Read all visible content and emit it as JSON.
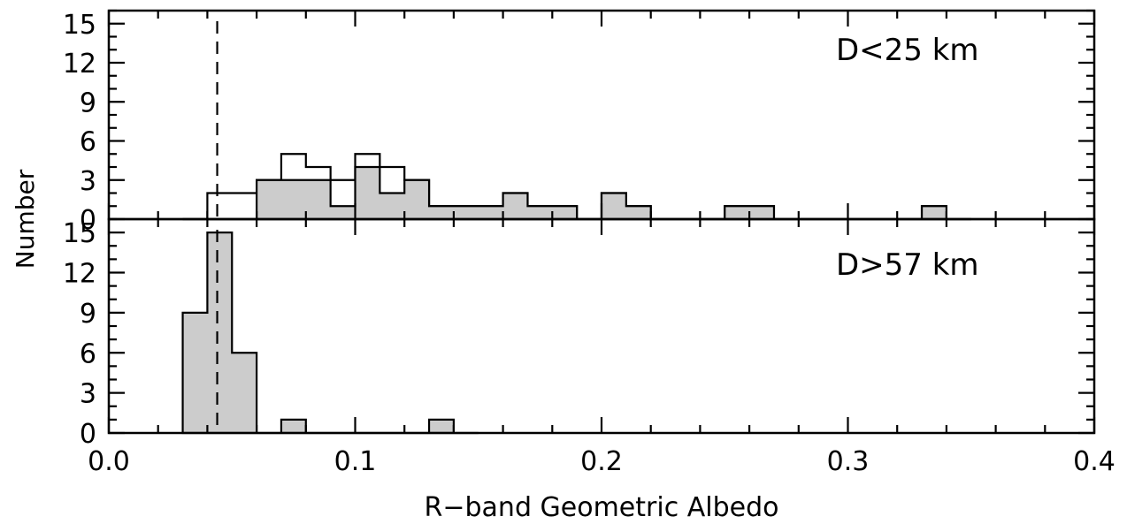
{
  "chart_data": [
    {
      "type": "bar",
      "panel": "top",
      "annotation": "D<25 km",
      "ylabel": "Number",
      "xlim": [
        0.0,
        0.4
      ],
      "ylim": [
        0,
        16
      ],
      "yticks": [
        0,
        3,
        6,
        9,
        12,
        15
      ],
      "bin_width": 0.01,
      "bin_starts": [
        0.03,
        0.04,
        0.05,
        0.06,
        0.07,
        0.08,
        0.09,
        0.1,
        0.11,
        0.12,
        0.13,
        0.14,
        0.15,
        0.16,
        0.17,
        0.18,
        0.19,
        0.2,
        0.21,
        0.22,
        0.23,
        0.24,
        0.25,
        0.26,
        0.27,
        0.28,
        0.29,
        0.3,
        0.31,
        0.32,
        0.33,
        0.34
      ],
      "series": [
        {
          "style": "open",
          "values": [
            0,
            2,
            2,
            3,
            5,
            4,
            3,
            5,
            4,
            3,
            1,
            1,
            1,
            2,
            1,
            1,
            0,
            2,
            1,
            0,
            0,
            0,
            1,
            1,
            0,
            0,
            0,
            0,
            0,
            0,
            1,
            0
          ]
        },
        {
          "style": "filled",
          "values": [
            0,
            0,
            0,
            3,
            3,
            3,
            1,
            4,
            2,
            3,
            1,
            1,
            1,
            2,
            1,
            1,
            0,
            2,
            1,
            0,
            0,
            0,
            1,
            1,
            0,
            0,
            0,
            0,
            0,
            0,
            1,
            0
          ]
        }
      ],
      "reference_line_x": 0.044
    },
    {
      "type": "bar",
      "panel": "bottom",
      "annotation": "D>57 km",
      "xlabel": "R−band Geometric Albedo",
      "xlim": [
        0.0,
        0.4
      ],
      "ylim": [
        0,
        16
      ],
      "yticks": [
        0,
        3,
        6,
        9,
        12,
        15
      ],
      "xticks": [
        "0.0",
        "0.1",
        "0.2",
        "0.3",
        "0.4"
      ],
      "bin_width": 0.01,
      "bin_starts": [
        0.03,
        0.04,
        0.05,
        0.06,
        0.07,
        0.08,
        0.09,
        0.1,
        0.11,
        0.12,
        0.13,
        0.14
      ],
      "series": [
        {
          "style": "filled",
          "values": [
            9,
            15,
            6,
            0,
            1,
            0,
            0,
            0,
            0,
            0,
            1,
            0
          ]
        }
      ],
      "reference_line_x": 0.044
    }
  ]
}
